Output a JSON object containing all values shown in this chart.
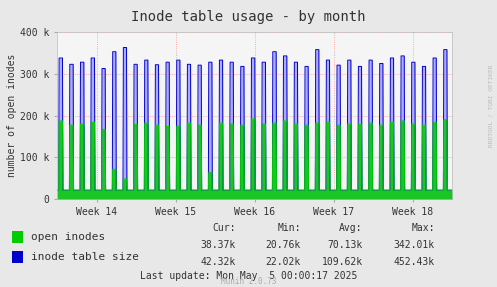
{
  "title": "Inode table usage - by month",
  "ylabel": "number of open inodes",
  "bg_color": "#e8e8e8",
  "plot_bg_color": "#f5f5f5",
  "grid_color": "#ff8888",
  "ylim": [
    0,
    400000
  ],
  "yticks": [
    0,
    100000,
    200000,
    300000,
    400000
  ],
  "ytick_labels": [
    "0",
    "100 k",
    "200 k",
    "300 k",
    "400 k"
  ],
  "xtick_labels": [
    "Week 14",
    "Week 15",
    "Week 16",
    "Week 17",
    "Week 18"
  ],
  "open_inodes_color": "#00cc00",
  "inode_table_color": "#0000cc",
  "inode_table_fill": "#aaaaff",
  "legend_labels": [
    "open inodes",
    "inode table size"
  ],
  "cur_label": "Cur:",
  "min_label": "Min:",
  "avg_label": "Avg:",
  "max_label": "Max:",
  "cur_open": "38.37k",
  "min_open": "20.76k",
  "avg_open": "70.13k",
  "max_open": "342.01k",
  "cur_table": "42.32k",
  "min_table": "22.02k",
  "avg_table": "109.62k",
  "max_table": "452.43k",
  "last_update": "Last update: Mon May  5 00:00:17 2025",
  "munin_version": "Munin 2.0.73",
  "rrdtool_label": "RRDTOOL / TOBI OETIKER",
  "title_fontsize": 10,
  "axis_fontsize": 7,
  "legend_fontsize": 8,
  "stats_fontsize": 7,
  "n_points": 2000,
  "n_spikes": 37,
  "base_value": 22000,
  "spike_heights_open": [
    165000,
    155000,
    158000,
    162000,
    145000,
    50000,
    27000,
    157000,
    160000,
    155000,
    152000,
    153000,
    160000,
    155000,
    42000,
    160000,
    158000,
    155000,
    170000,
    158000,
    160000,
    165000,
    158000,
    155000,
    160000,
    163000,
    155000,
    158000,
    157000,
    160000,
    155000,
    163000,
    165000,
    158000,
    155000,
    162000,
    168000
  ],
  "spike_heights_table": [
    315000,
    300000,
    305000,
    315000,
    290000,
    330000,
    340000,
    300000,
    310000,
    299000,
    305000,
    310000,
    300000,
    298000,
    305000,
    310000,
    305000,
    295000,
    315000,
    305000,
    330000,
    320000,
    305000,
    295000,
    335000,
    310000,
    298000,
    310000,
    295000,
    310000,
    302000,
    315000,
    320000,
    305000,
    295000,
    315000,
    335000
  ]
}
